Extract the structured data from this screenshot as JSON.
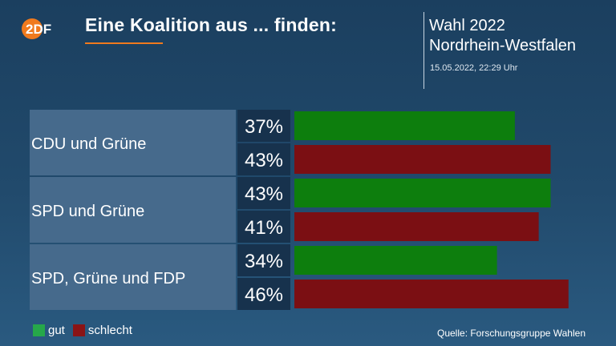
{
  "brand": {
    "logo_text": "2DF",
    "accent_color": "#f07a1d"
  },
  "header": {
    "title": "Eine Koalition aus ... finden:"
  },
  "election": {
    "line1": "Wahl 2022",
    "line2": "Nordrhein-Westfalen",
    "timestamp": "15.05.2022, 22:29 Uhr"
  },
  "chart_data": {
    "type": "bar",
    "orientation": "horizontal",
    "categories": [
      "CDU und Grüne",
      "SPD und Grüne",
      "SPD, Grüne und FDP"
    ],
    "series": [
      {
        "name": "gut",
        "color": "#0d7e0d",
        "values": [
          37,
          43,
          34
        ],
        "labels": [
          "37%",
          "43%",
          "34%"
        ]
      },
      {
        "name": "schlecht",
        "color": "#7b0f13",
        "values": [
          43,
          41,
          46
        ],
        "labels": [
          "43%",
          "41%",
          "46%"
        ]
      }
    ],
    "xlim": [
      0,
      50
    ],
    "legend_position": "bottom-left"
  },
  "legend": [
    {
      "label": "gut",
      "color": "#26a84a"
    },
    {
      "label": "schlecht",
      "color": "#8a1416"
    }
  ],
  "footer": {
    "source": "Quelle: Forschungsgruppe Wahlen"
  }
}
